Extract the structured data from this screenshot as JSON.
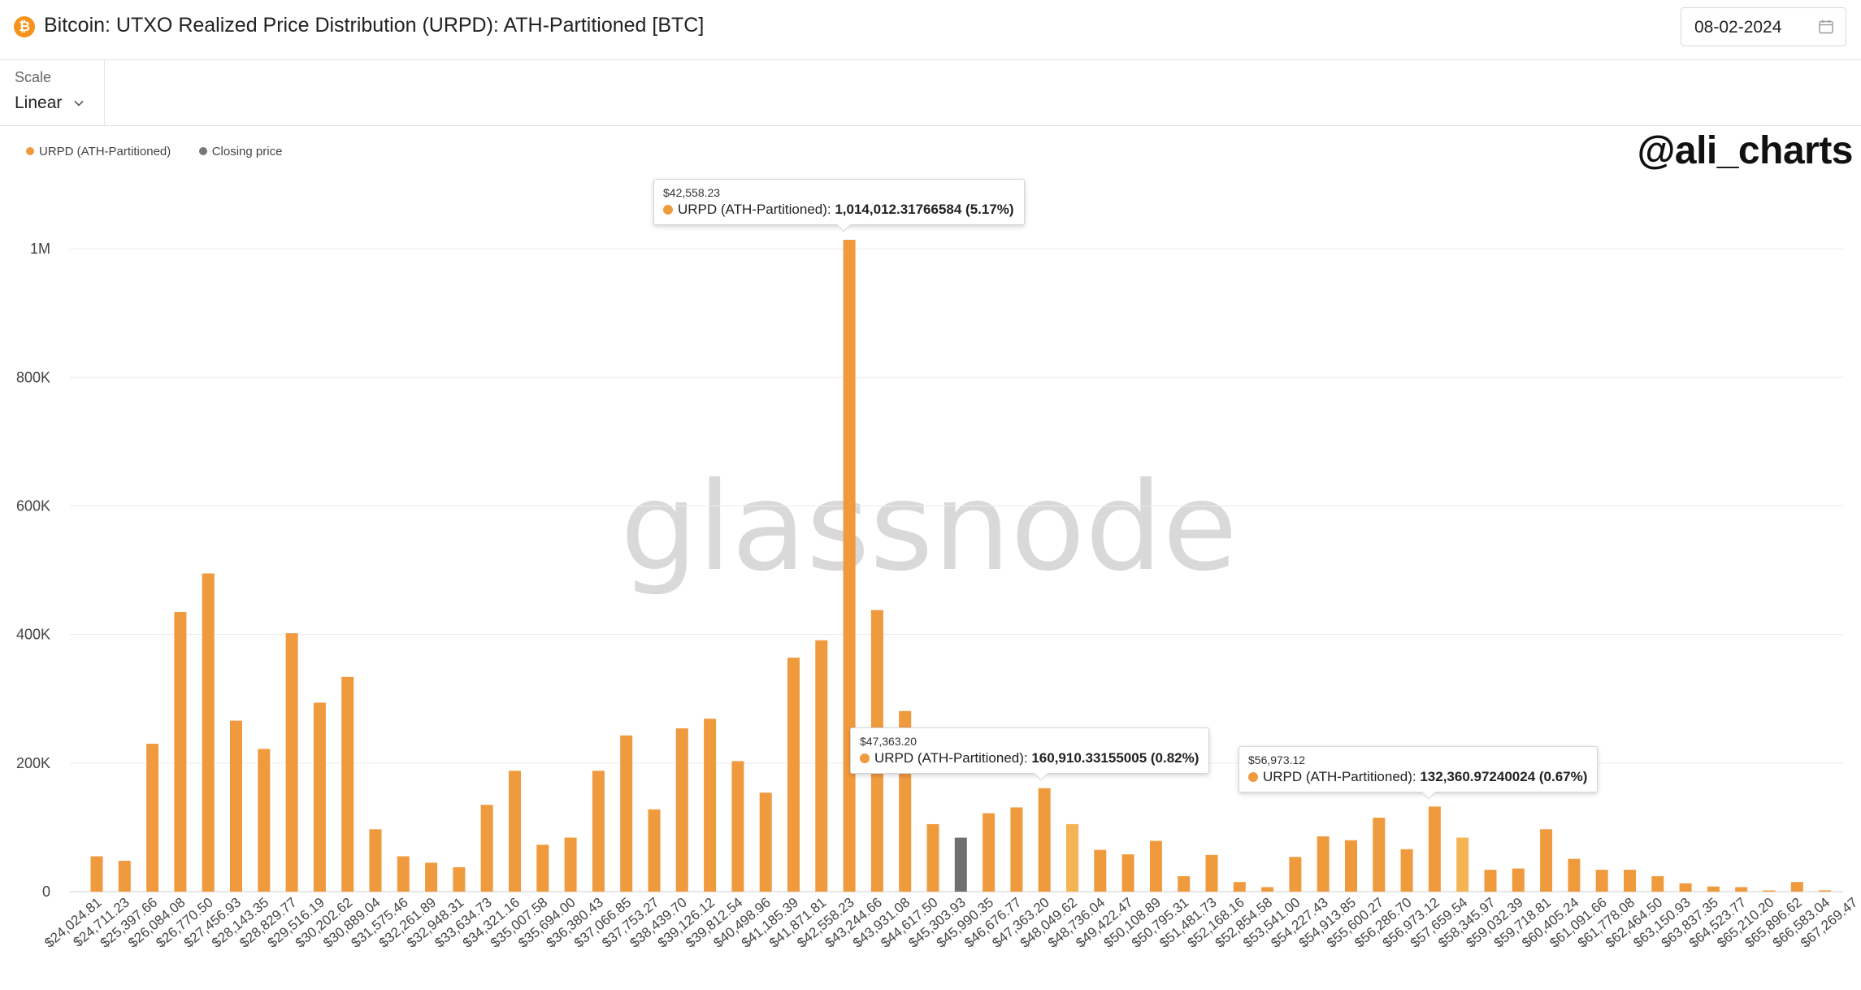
{
  "header": {
    "coin_icon": "bitcoin-icon",
    "coin_glyph": "₿",
    "title": "Bitcoin: UTXO Realized Price Distribution (URPD): ATH-Partitioned [BTC]",
    "date": "08-02-2024",
    "calendar_icon": "calendar-icon"
  },
  "controls": {
    "scale_label": "Scale",
    "scale_value": "Linear",
    "chevron_icon": "chevron-down-icon"
  },
  "watermark": "glassnode",
  "handle": "@ali_charts",
  "legend": [
    {
      "label": "URPD (ATH-Partitioned)",
      "color": "#f09a3e"
    },
    {
      "label": "Closing price",
      "color": "#777777"
    }
  ],
  "tooltips": [
    {
      "price": "$42,558.23",
      "series": "URPD (ATH-Partitioned): ",
      "value": "1,014,012.31766584 (5.17%)",
      "bar_index": 28
    },
    {
      "price": "$47,363.20",
      "series": "URPD (ATH-Partitioned): ",
      "value": "160,910.33155005 (0.82%)",
      "bar_index": 35
    },
    {
      "price": "$56,973.12",
      "series": "URPD (ATH-Partitioned): ",
      "value": "132,360.97240024 (0.67%)",
      "bar_index": 49
    }
  ],
  "colors": {
    "bar": "#f09a3e",
    "bar_highlight": "#f5b454",
    "closing": "#6f6f6f",
    "grid": "#ececec",
    "axis": "#cfcfcf"
  },
  "chart_data": {
    "type": "bar",
    "title": "Bitcoin: UTXO Realized Price Distribution (URPD): ATH-Partitioned [BTC]",
    "ylim": [
      0,
      1100000
    ],
    "yticks": [
      0,
      200000,
      400000,
      600000,
      800000,
      1000000
    ],
    "ytick_labels": [
      "0",
      "200K",
      "400K",
      "600K",
      "800K",
      "1M"
    ],
    "grid": true,
    "legend_position": "top-left",
    "closing_price_index": 31,
    "highlighted_indices": [
      35,
      49
    ],
    "categories": [
      "$24,024.81",
      "$24,711.23",
      "$25,397.66",
      "$26,084.08",
      "$26,770.50",
      "$27,456.93",
      "$28,143.35",
      "$28,829.77",
      "$29,516.19",
      "$30,202.62",
      "$30,889.04",
      "$31,575.46",
      "$32,261.89",
      "$32,948.31",
      "$33,634.73",
      "$34,321.16",
      "$35,007.58",
      "$35,694.00",
      "$36,380.43",
      "$37,066.85",
      "$37,753.27",
      "$38,439.70",
      "$39,126.12",
      "$39,812.54",
      "$40,498.96",
      "$41,185.39",
      "$41,871.81",
      "$42,558.23",
      "$43,244.66",
      "$43,931.08",
      "$44,617.50",
      "$45,303.93",
      "$45,990.35",
      "$46,676.77",
      "$47,363.20",
      "$48,049.62",
      "$48,736.04",
      "$49,422.47",
      "$50,108.89",
      "$50,795.31",
      "$51,481.73",
      "$52,168.16",
      "$52,854.58",
      "$53,541.00",
      "$54,227.43",
      "$54,913.85",
      "$55,600.27",
      "$56,286.70",
      "$56,973.12",
      "$57,659.54",
      "$58,345.97",
      "$59,032.39",
      "$59,718.81",
      "$60,405.24",
      "$61,091.66",
      "$61,778.08",
      "$62,464.50",
      "$63,150.93",
      "$63,837.35",
      "$64,523.77",
      "$65,210.20",
      "$65,896.62",
      "$66,583.04",
      "$67,269.47"
    ],
    "series": [
      {
        "name": "URPD (ATH-Partitioned)",
        "values": [
          55000,
          48000,
          230000,
          435000,
          495000,
          266000,
          222000,
          402000,
          294000,
          334000,
          97000,
          55000,
          45000,
          38000,
          135000,
          188000,
          73000,
          84000,
          188000,
          243000,
          128000,
          254000,
          269000,
          203000,
          154000,
          364000,
          391000,
          1014012,
          438000,
          281000,
          105000,
          84000,
          122000,
          131000,
          160910,
          105000,
          65000,
          58000,
          79000,
          24000,
          57000,
          15000,
          7000,
          54000,
          86000,
          80000,
          115000,
          66000,
          132361,
          84000,
          34000,
          36000,
          97000,
          51000,
          34000,
          34000,
          24000,
          13000,
          8000,
          7000,
          1500,
          15000,
          2000,
          0
        ]
      }
    ]
  }
}
